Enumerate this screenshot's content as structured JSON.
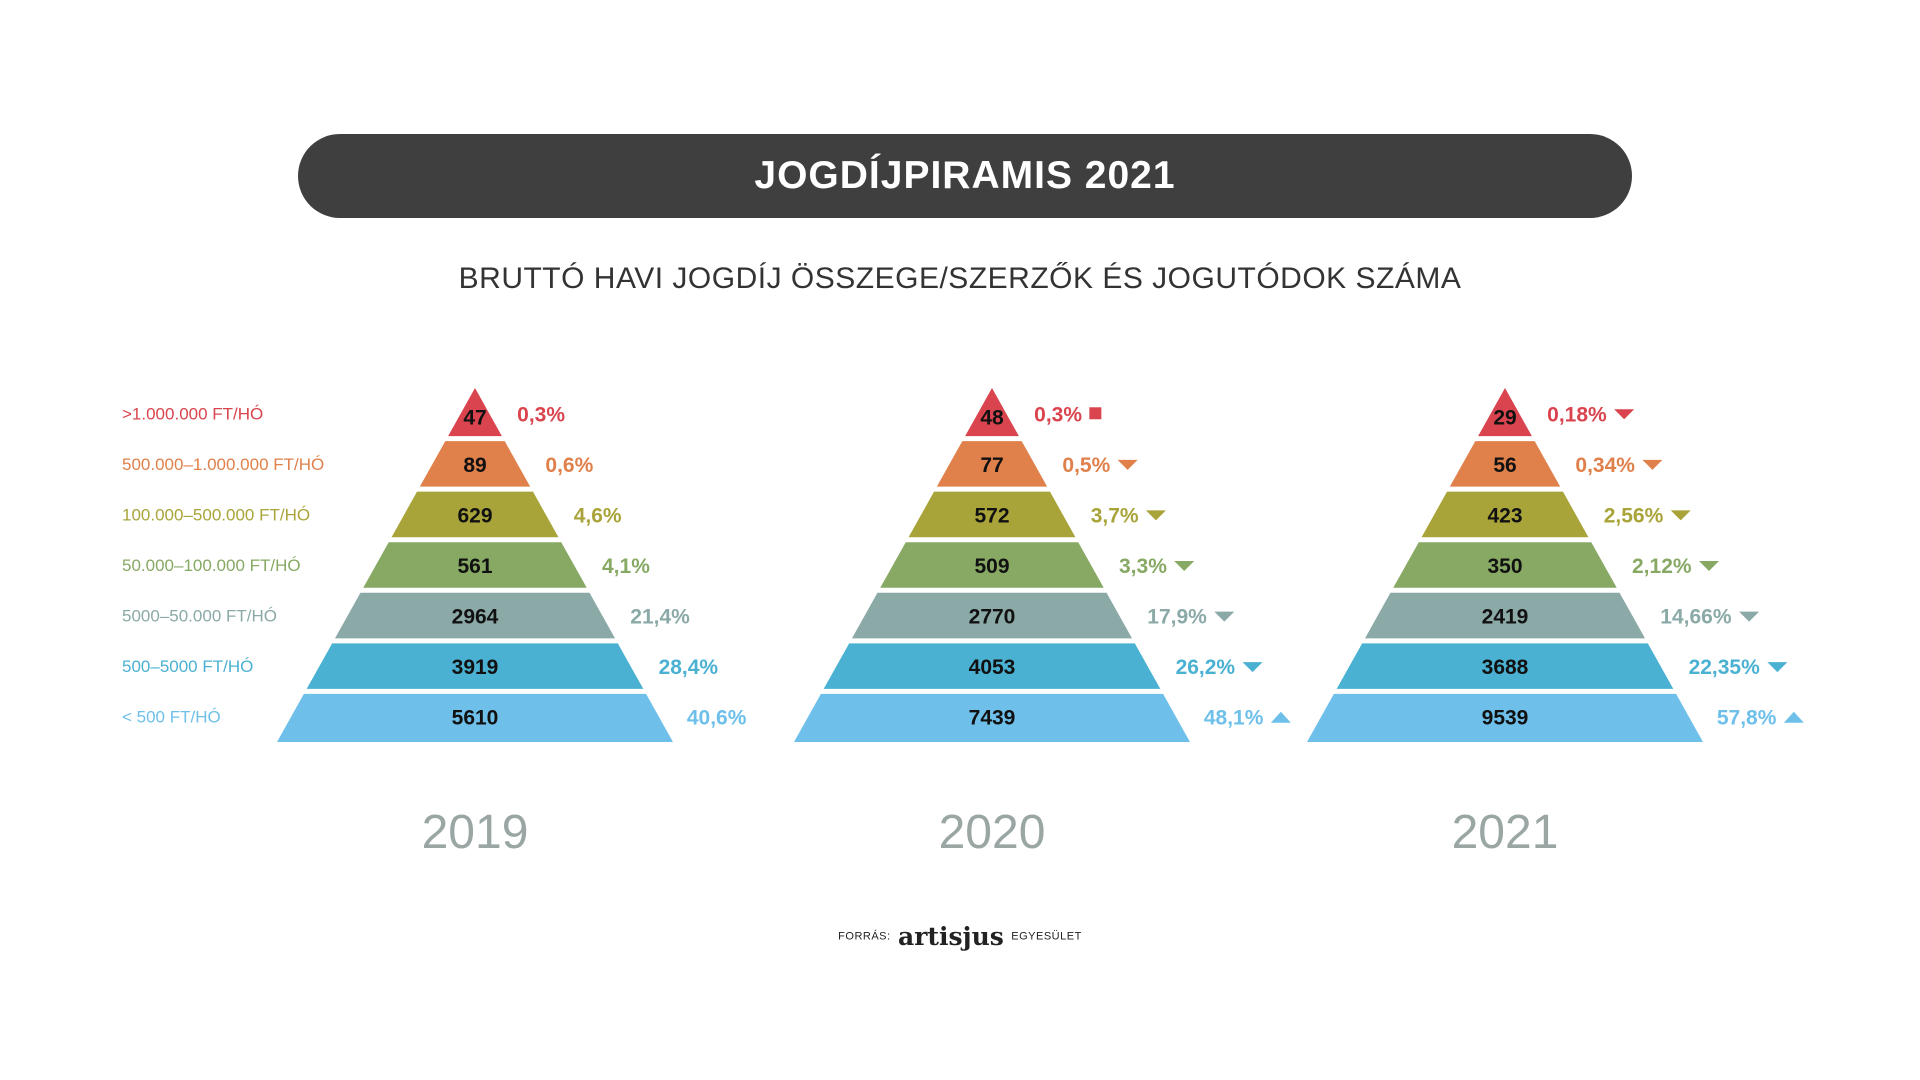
{
  "title": "JOGDÍJPIRAMIS 2021",
  "subtitle": "BRUTTÓ HAVI JOGDÍJ ÖSSZEGE/SZERZŐK ÉS JOGUTÓDOK SZÁMA",
  "source": {
    "prefix": "FORRÁS:",
    "brand": "artisjus",
    "suffix": "EGYESÜLET"
  },
  "colors": [
    "#d9444e",
    "#e0804a",
    "#a9a43a",
    "#87a964",
    "#8aa9a7",
    "#4bb1d2",
    "#6ec0ea"
  ],
  "chart_data": {
    "type": "bar",
    "title": "JOGDÍJPIRAMIS 2021",
    "subtitle": "BRUTTÓ HAVI JOGDÍJ ÖSSZEGE/SZERZŐK ÉS JOGUTÓDOK SZÁMA",
    "categories": [
      ">1.000.000 FT/HÓ",
      "500.000–1.000.000 FT/HÓ",
      "100.000–500.000 FT/HÓ",
      "50.000–100.000 FT/HÓ",
      "5000–50.000 FT/HÓ",
      "500–5000 FT/HÓ",
      "< 500 FT/HÓ"
    ],
    "series": [
      {
        "name": "2019",
        "values": [
          47,
          89,
          629,
          561,
          2964,
          3919,
          5610
        ],
        "value_labels": [
          "47",
          "89",
          "629",
          "561",
          "2964",
          "3919",
          "5610"
        ],
        "percents": [
          "0,3%",
          "0,6%",
          "4,6%",
          "4,1%",
          "21,4%",
          "28,4%",
          "40,6%"
        ],
        "trend": [
          "none",
          "none",
          "none",
          "none",
          "none",
          "none",
          "none"
        ]
      },
      {
        "name": "2020",
        "values": [
          48,
          77,
          572,
          509,
          2770,
          4053,
          7439
        ],
        "value_labels": [
          "48",
          "77",
          "572",
          "509",
          "2770",
          "4053",
          "7439"
        ],
        "percents": [
          "0,3%",
          "0,5%",
          "3,7%",
          "3,3%",
          "17,9%",
          "26,2%",
          "48,1%"
        ],
        "trend": [
          "same",
          "down",
          "down",
          "down",
          "down",
          "down",
          "up"
        ]
      },
      {
        "name": "2021",
        "values": [
          29,
          56,
          423,
          350,
          2419,
          3688,
          9539
        ],
        "value_labels": [
          "29",
          "56",
          "423",
          "350",
          "2419",
          "3688",
          "9539"
        ],
        "percents": [
          "0,18%",
          "0,34%",
          "2,56%",
          "2,12%",
          "14,66%",
          "22,35%",
          "57,8%"
        ],
        "trend": [
          "down",
          "down",
          "down",
          "down",
          "down",
          "down",
          "up"
        ]
      }
    ]
  }
}
